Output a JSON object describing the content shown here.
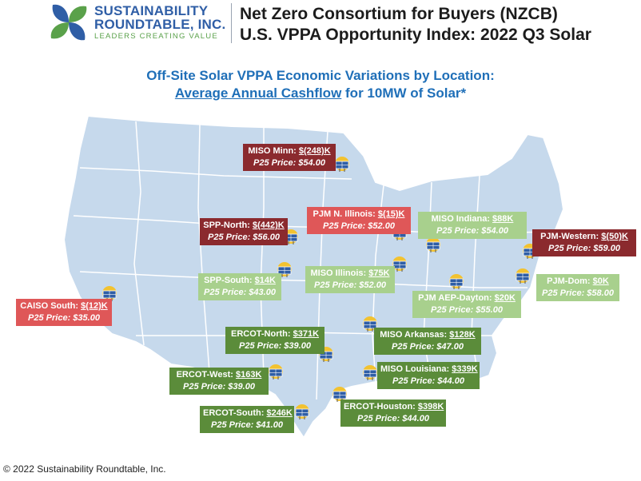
{
  "logo": {
    "name_line1": "SUSTAINABILITY",
    "name_line2": "ROUNDTABLE, INC.",
    "tagline": "LEADERS CREATING VALUE"
  },
  "header": {
    "title_line1": "Net Zero Consortium for Buyers (NZCB)",
    "title_line2": "U.S. VPPA Opportunity Index: 2022 Q3 Solar"
  },
  "subtitle": {
    "line1": "Off-Site Solar VPPA Economic Variations by Location:",
    "line2_underlined": "Average Annual Cashflow",
    "line2_rest": " for 10MW of Solar*"
  },
  "map": {
    "land_color": "#c6d9ec",
    "border_color": "#ffffff",
    "icon": "solar-panel-icon"
  },
  "markets": [
    {
      "name": "MISO Minn:",
      "value": "$(248)K",
      "price": "P25 Price: $54.00",
      "color": "#8b2a2e"
    },
    {
      "name": "SPP-North:",
      "value": "$(442)K",
      "price": "P25 Price: $56.00",
      "color": "#8b2a2e"
    },
    {
      "name": "PJM N. Illinois:",
      "value": "$(15)K",
      "price": "P25 Price: $52.00",
      "color": "#df5758"
    },
    {
      "name": "MISO Indiana:",
      "value": "$88K",
      "price": "P25 Price: $54.00",
      "color": "#a8d08d"
    },
    {
      "name": "PJM-Western:",
      "value": "$(50)K",
      "price": "P25 Price: $59.00",
      "color": "#8b2a2e"
    },
    {
      "name": "SPP-South:",
      "value": "$14K",
      "price": "P25 Price: $43.00",
      "color": "#a8d08d"
    },
    {
      "name": "MISO Illinois:",
      "value": "$75K",
      "price": "P25 Price: $52.00",
      "color": "#a8d08d"
    },
    {
      "name": "PJM AEP-Dayton:",
      "value": "$20K",
      "price": "P25 Price: $55.00",
      "color": "#a8d08d"
    },
    {
      "name": "PJM-Dom:",
      "value": "$0K",
      "price": "P25 Price: $58.00",
      "color": "#a8d08d"
    },
    {
      "name": "CAISO South:",
      "value": "$(12)K",
      "price": "P25 Price: $35.00",
      "color": "#df5758"
    },
    {
      "name": "ERCOT-North:",
      "value": "$371K",
      "price": "P25 Price: $39.00",
      "color": "#5b8c3a"
    },
    {
      "name": "MISO Arkansas:",
      "value": "$128K",
      "price": "P25 Price: $47.00",
      "color": "#5b8c3a"
    },
    {
      "name": "ERCOT-West:",
      "value": "$163K",
      "price": "P25 Price:  $39.00",
      "color": "#5b8c3a"
    },
    {
      "name": "MISO Louisiana:",
      "value": "$339K",
      "price": "P25 Price: $44.00",
      "color": "#5b8c3a"
    },
    {
      "name": "ERCOT-South:",
      "value": "$246K",
      "price": "P25 Price: $41.00",
      "color": "#5b8c3a"
    },
    {
      "name": "ERCOT-Houston:",
      "value": "$398K",
      "price": "P25 Price: $44.00",
      "color": "#5b8c3a"
    }
  ],
  "footer": {
    "copyright": "© 2022 Sustainability Roundtable, Inc."
  }
}
